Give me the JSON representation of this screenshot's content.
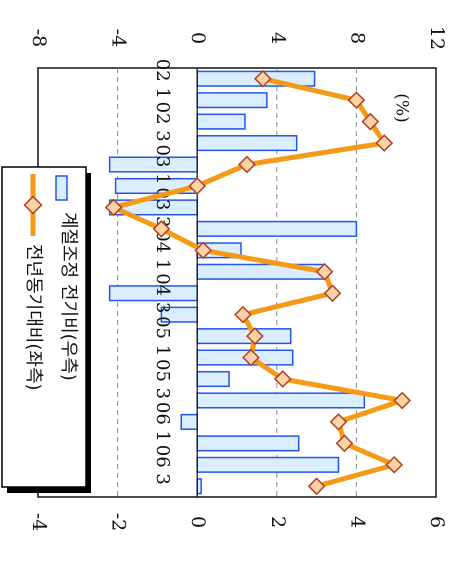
{
  "chart_data": {
    "type": "bar",
    "orientation": "rotated-90-clockwise",
    "categories": [
      "02 1",
      "",
      "02 3",
      "",
      "03 1",
      "",
      "03 3",
      "",
      "04 1",
      "",
      "04 3",
      "",
      "05 1",
      "",
      "05 3",
      "",
      "06 1",
      "",
      "06 3",
      ""
    ],
    "unit_label": "(%)",
    "top_axis_ticks": [
      "-8",
      "-4",
      "0",
      "4",
      "8",
      "12"
    ],
    "bottom_axis_ticks": [
      "-4",
      "-2",
      "0",
      "2",
      "4",
      "6"
    ],
    "series": [
      {
        "name": "계절조정 전기비(우측)",
        "type": "bar",
        "axis": "bottom",
        "ylim": [
          -4,
          6
        ],
        "values": [
          2.95,
          1.75,
          1.2,
          2.5,
          -2.2,
          -2.05,
          -2.2,
          4.0,
          1.1,
          3.2,
          -2.2,
          -0.9,
          2.35,
          2.4,
          0.8,
          4.2,
          -0.4,
          2.55,
          3.55,
          0.1
        ],
        "fill": "#dbeeff",
        "stroke": "#2255ee"
      },
      {
        "name": "전년동기대비(좌측)",
        "type": "line",
        "axis": "top",
        "ylim": [
          -8,
          12
        ],
        "values": [
          3.3,
          8.0,
          8.7,
          9.4,
          2.5,
          0.0,
          -4.2,
          -1.8,
          0.3,
          6.4,
          6.8,
          2.3,
          2.9,
          2.7,
          4.3,
          10.3,
          7.1,
          7.4,
          9.9,
          6.0
        ],
        "color": "#f59a16",
        "marker_fill": "#fbd3a6",
        "marker_stroke": "#b2401f"
      }
    ],
    "grid": "dashed",
    "legend_position": "left"
  }
}
